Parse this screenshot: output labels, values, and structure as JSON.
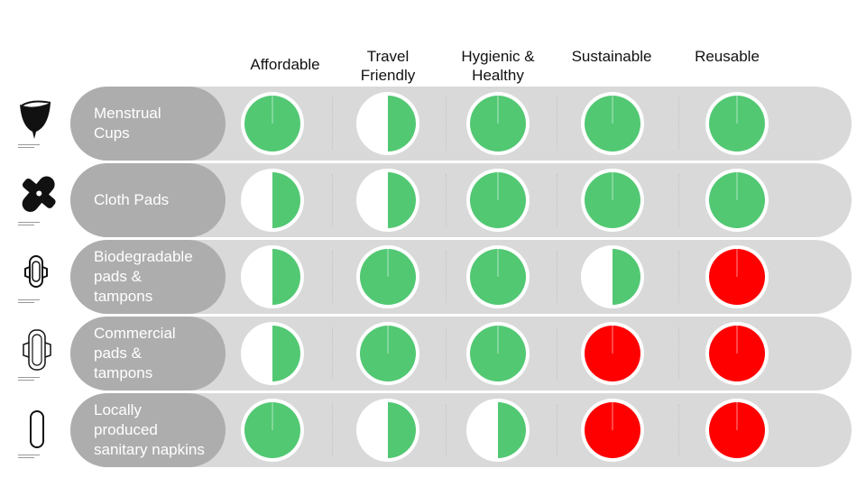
{
  "columns": [
    "Affordable",
    "Travel\nFriendly",
    "Hygienic &\nHealthy",
    "Sustainable",
    "Reusable"
  ],
  "rows": [
    {
      "label": "Menstrual\nCups",
      "icon": "menstrual-cup-icon"
    },
    {
      "label": "Cloth Pads",
      "icon": "cloth-pad-icon"
    },
    {
      "label": "Biodegradable\npads &\ntampons",
      "icon": "biodegradable-pad-icon"
    },
    {
      "label": "Commercial\npads &\ntampons",
      "icon": "commercial-pad-icon"
    },
    {
      "label": "Locally\nproduced\nsanitary napkins",
      "icon": "sanitary-napkin-icon"
    }
  ],
  "colors": {
    "positive": "#52c873",
    "negative": "#ff0000",
    "row_background": "#d9d9d9",
    "label_background": "#adadad"
  },
  "chart_data": {
    "type": "table",
    "title": "",
    "columns": [
      "Affordable",
      "Travel Friendly",
      "Hygienic & Healthy",
      "Sustainable",
      "Reusable"
    ],
    "rows": [
      "Menstrual Cups",
      "Cloth Pads",
      "Biodegradable pads & tampons",
      "Commercial pads & tampons",
      "Locally produced sanitary napkins"
    ],
    "legend": "Harvey ball: filled share indicates how well the product meets the criterion; red = not met",
    "values": [
      [
        {
          "fill": 1.0,
          "status": "positive"
        },
        {
          "fill": 0.5,
          "status": "positive"
        },
        {
          "fill": 1.0,
          "status": "positive"
        },
        {
          "fill": 1.0,
          "status": "positive"
        },
        {
          "fill": 1.0,
          "status": "positive"
        }
      ],
      [
        {
          "fill": 0.5,
          "status": "positive"
        },
        {
          "fill": 0.5,
          "status": "positive"
        },
        {
          "fill": 1.0,
          "status": "positive"
        },
        {
          "fill": 1.0,
          "status": "positive"
        },
        {
          "fill": 1.0,
          "status": "positive"
        }
      ],
      [
        {
          "fill": 0.5,
          "status": "positive"
        },
        {
          "fill": 1.0,
          "status": "positive"
        },
        {
          "fill": 1.0,
          "status": "positive"
        },
        {
          "fill": 0.5,
          "status": "positive"
        },
        {
          "fill": 1.0,
          "status": "negative"
        }
      ],
      [
        {
          "fill": 0.5,
          "status": "positive"
        },
        {
          "fill": 1.0,
          "status": "positive"
        },
        {
          "fill": 1.0,
          "status": "positive"
        },
        {
          "fill": 1.0,
          "status": "negative"
        },
        {
          "fill": 1.0,
          "status": "negative"
        }
      ],
      [
        {
          "fill": 1.0,
          "status": "positive"
        },
        {
          "fill": 0.5,
          "status": "positive"
        },
        {
          "fill": 0.5,
          "status": "positive"
        },
        {
          "fill": 1.0,
          "status": "negative"
        },
        {
          "fill": 1.0,
          "status": "negative"
        }
      ]
    ]
  }
}
